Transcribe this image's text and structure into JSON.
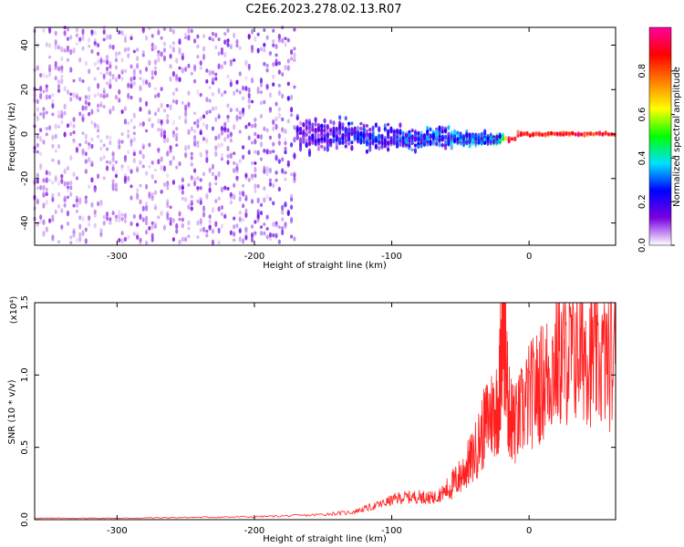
{
  "title": "C2E6.2023.278.02.13.R07",
  "chart_data": [
    {
      "type": "heatmap",
      "xlabel": "Height of straight line (km)",
      "ylabel": "Frequency (Hz)",
      "xlim": [
        -360,
        63
      ],
      "ylim": [
        -50,
        48
      ],
      "xticks": [
        -300,
        -200,
        -100,
        0
      ],
      "xtick_labels": [
        "-300",
        "-200",
        "-100",
        "0"
      ],
      "yticks": [
        -40,
        -20,
        0,
        20,
        40
      ],
      "ytick_labels": [
        "-40",
        "-20",
        "0",
        "20",
        "40"
      ],
      "colorbar": {
        "label": "Normalized spectral amplitude",
        "range": [
          0,
          1
        ],
        "ticks": [
          0,
          0.2,
          0.4,
          0.6,
          0.8
        ],
        "tick_labels": [
          "0.0",
          "0.2",
          "0.4",
          "0.6",
          "0.8"
        ],
        "colormap": [
          "#ffffff",
          "#7a00e0",
          "#0000ff",
          "#00e0ff",
          "#00ff00",
          "#ffff00",
          "#ff8000",
          "#ff0000",
          "#ff00a0"
        ]
      },
      "description_points": [
        {
          "x": -340,
          "spread_hz": 48,
          "amplitude": 0.1
        },
        {
          "x": -250,
          "spread_hz": 48,
          "amplitude": 0.1
        },
        {
          "x": -180,
          "spread_hz": 12,
          "amplitude": 0.15
        },
        {
          "x": -120,
          "spread_hz": 8,
          "amplitude": 0.25
        },
        {
          "x": -60,
          "spread_hz": 6,
          "amplitude": 0.3
        },
        {
          "x": -25,
          "spread_hz": 3,
          "amplitude": 0.35
        },
        {
          "x": 0,
          "spread_hz": 1,
          "amplitude": 0.9
        },
        {
          "x": 60,
          "spread_hz": 1,
          "amplitude": 0.9
        }
      ]
    },
    {
      "type": "line",
      "xlabel": "Height of straight line (km)",
      "ylabel": "SNR (10 * v/v)",
      "yscale_label": "(x10⁴)",
      "xlim": [
        -360,
        63
      ],
      "ylim": [
        0,
        1.5
      ],
      "xticks": [
        -300,
        -200,
        -100,
        0
      ],
      "xtick_labels": [
        "-300",
        "-200",
        "-100",
        "0"
      ],
      "yticks": [
        0,
        0.5,
        1.0,
        1.5
      ],
      "ytick_labels": [
        "0.0",
        "0.5",
        "1.0",
        "1.5"
      ],
      "series": [
        {
          "color": "#ff2020",
          "x": [
            -360,
            -300,
            -250,
            -200,
            -160,
            -130,
            -110,
            -95,
            -80,
            -70,
            -60,
            -50,
            -40,
            -30,
            -22,
            -19,
            -15,
            -10,
            0,
            10,
            20,
            30,
            40,
            50,
            63
          ],
          "y": [
            0.01,
            0.01,
            0.015,
            0.02,
            0.03,
            0.05,
            0.1,
            0.15,
            0.16,
            0.15,
            0.2,
            0.3,
            0.45,
            0.7,
            0.8,
            1.5,
            0.75,
            0.65,
            0.85,
            0.95,
            1.1,
            1.15,
            1.2,
            1.1,
            1.1
          ]
        }
      ]
    }
  ]
}
